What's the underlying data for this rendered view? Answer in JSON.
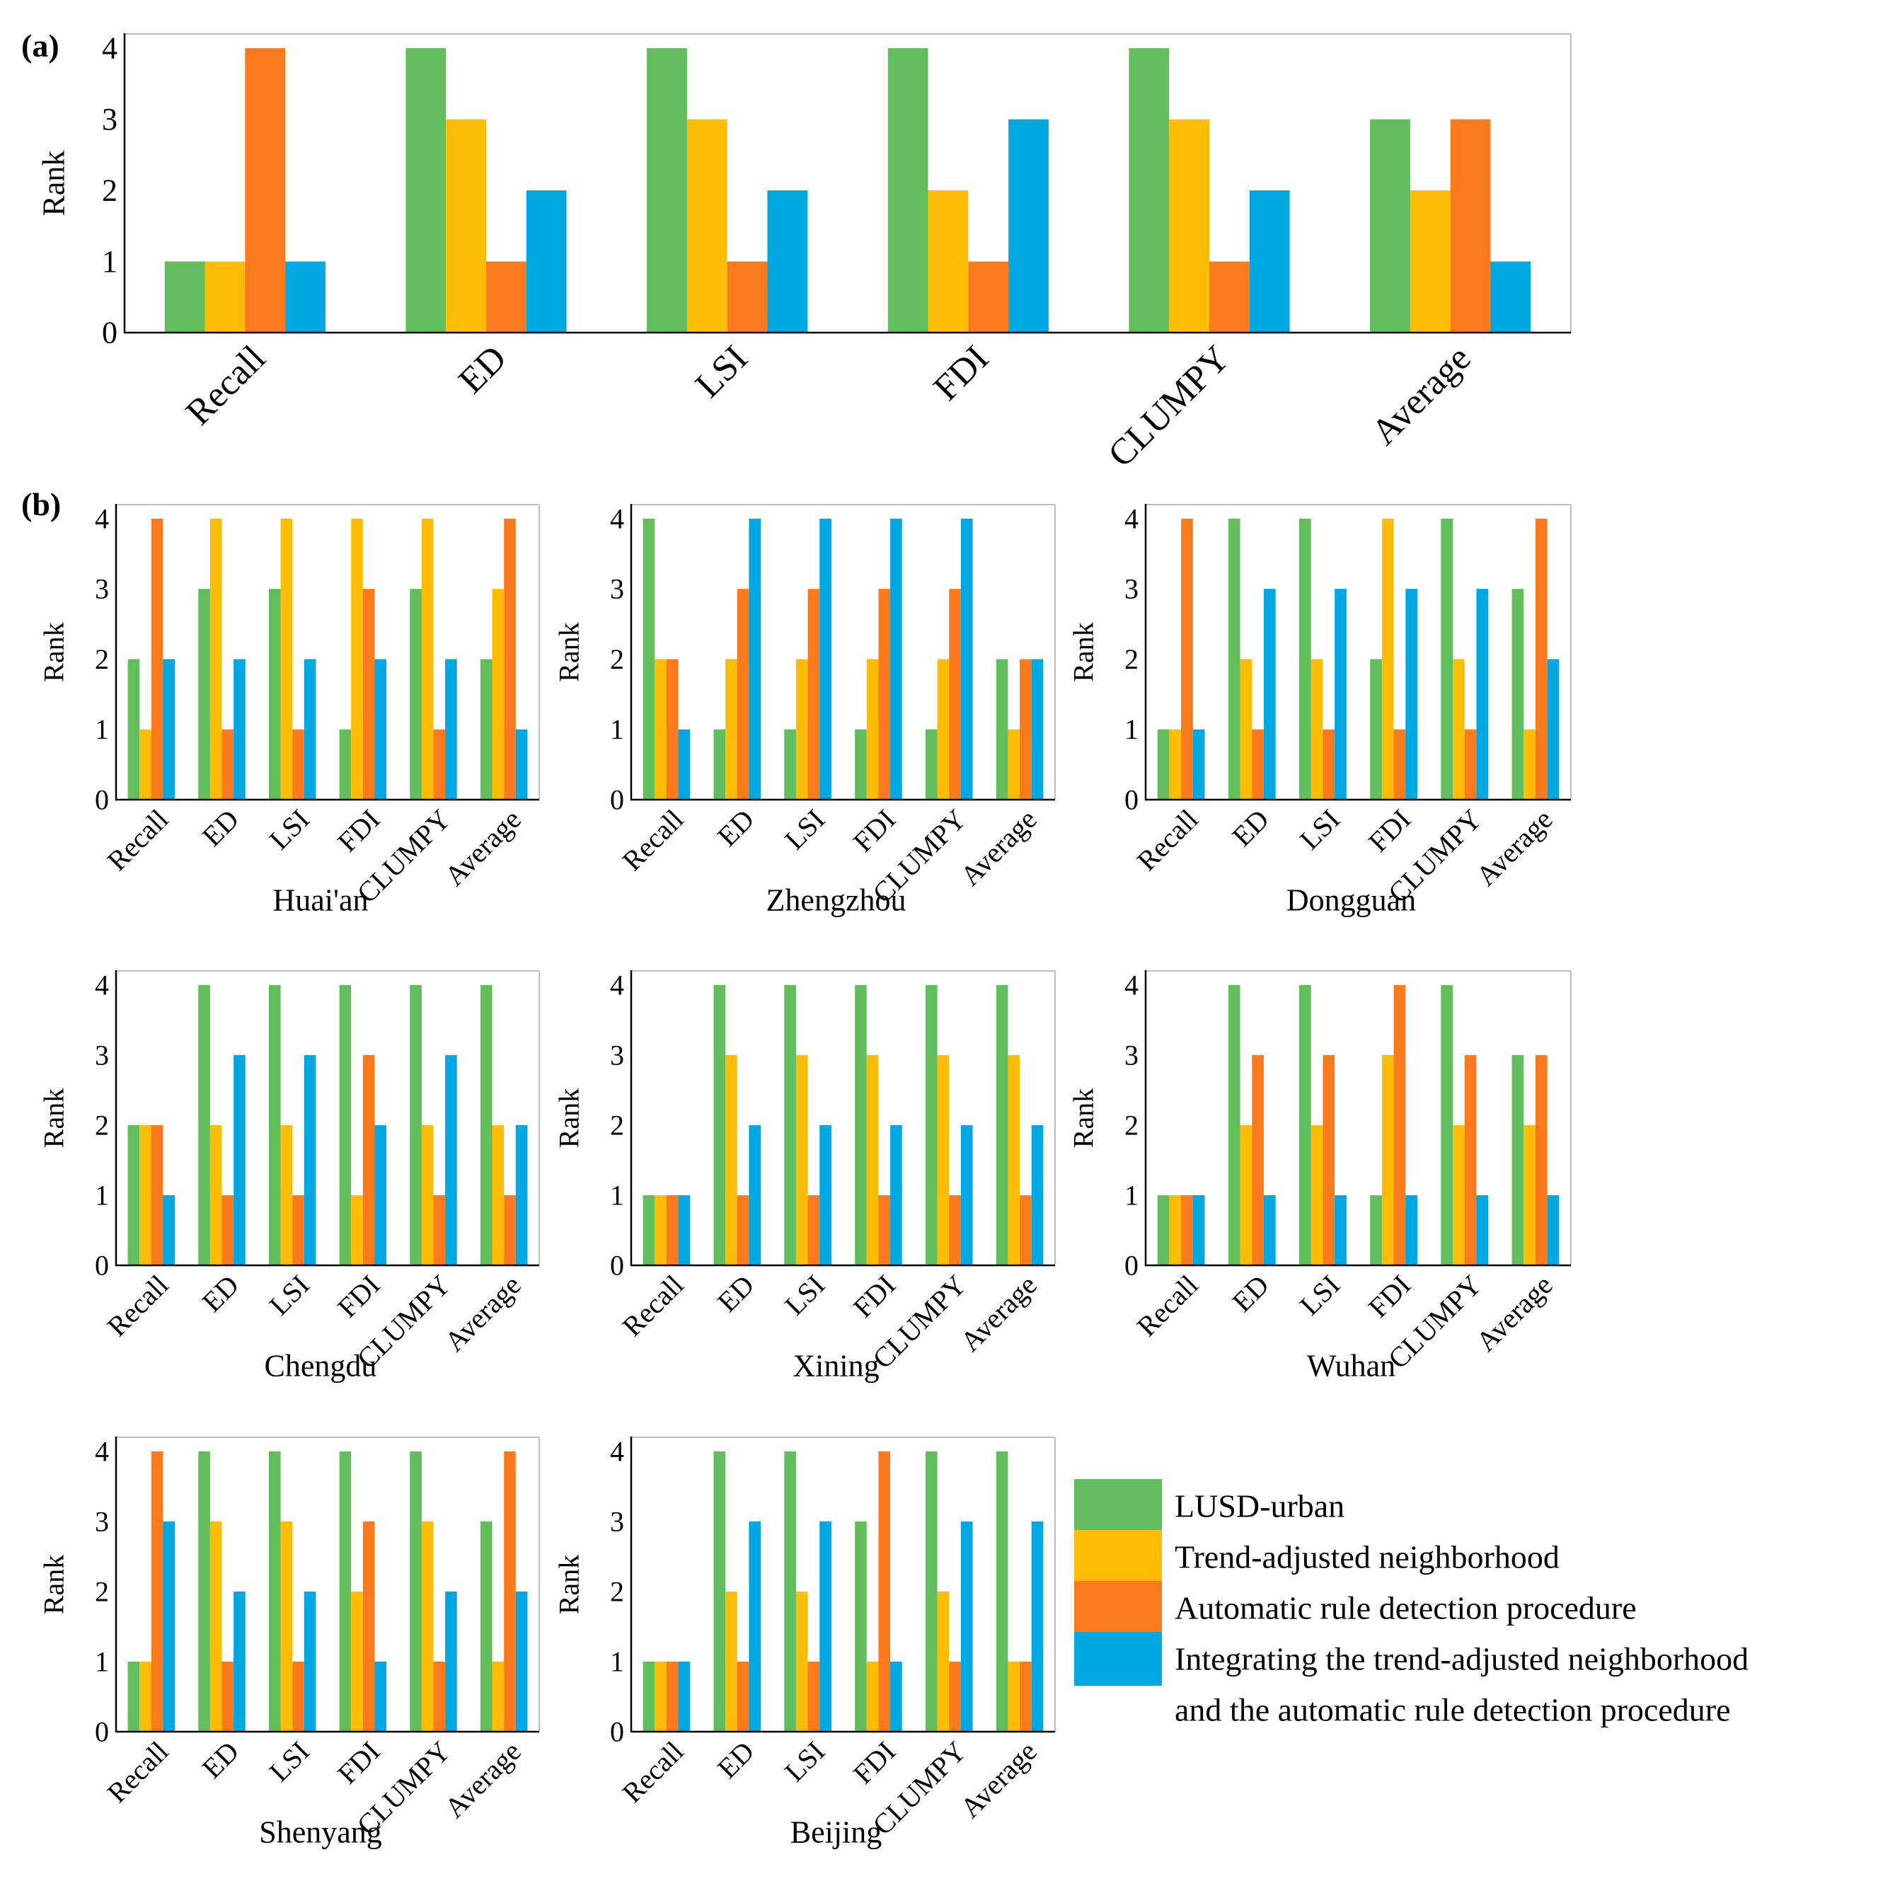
{
  "chart_data": {
    "type": "bar",
    "series_names": [
      "LUSD-urban",
      "Trend-adjusted neighborhood",
      "Automatic rule detection procedure",
      "Integrating the trend-adjusted neighborhood and the automatic rule detection procedure"
    ],
    "colors": [
      "#62BD5C",
      "#FDBD05",
      "#FB7A1D",
      "#00A8E2"
    ],
    "legend": {
      "entries": [
        [
          "LUSD-urban"
        ],
        [
          "Trend-adjusted neighborhood"
        ],
        [
          "Automatic rule detection procedure"
        ],
        [
          "Integrating the trend-adjusted neighborhood",
          "and the automatic rule detection procedure"
        ]
      ],
      "placement": "bottom-right"
    },
    "categories": [
      "Recall",
      "ED",
      "LSI",
      "FDI",
      "CLUMPY",
      "Average"
    ],
    "ylabel": "Rank",
    "yticks": [
      "0",
      "1",
      "2",
      "3",
      "4"
    ],
    "ylim": [
      0,
      4.2
    ],
    "panels": [
      {
        "id": "a",
        "panel_label": "(a)",
        "title": "",
        "series": [
          {
            "name": "LUSD-urban",
            "values": [
              1,
              4,
              4,
              4,
              4,
              3
            ]
          },
          {
            "name": "Trend-adjusted neighborhood",
            "values": [
              1,
              3,
              3,
              2,
              3,
              2
            ]
          },
          {
            "name": "Automatic rule detection procedure",
            "values": [
              4,
              1,
              1,
              1,
              1,
              3
            ]
          },
          {
            "name": "Integrating the trend-adjusted neighborhood and the automatic rule detection procedure",
            "values": [
              1,
              2,
              2,
              3,
              2,
              1
            ]
          }
        ]
      },
      {
        "id": "b1",
        "panel_label": "(b)",
        "title": "Huai'an",
        "series": [
          {
            "name": "LUSD-urban",
            "values": [
              2,
              3,
              3,
              1,
              3,
              2
            ]
          },
          {
            "name": "Trend-adjusted neighborhood",
            "values": [
              1,
              4,
              4,
              4,
              4,
              3
            ]
          },
          {
            "name": "Automatic rule detection procedure",
            "values": [
              4,
              1,
              1,
              3,
              1,
              4
            ]
          },
          {
            "name": "Integrating the trend-adjusted neighborhood and the automatic rule detection procedure",
            "values": [
              2,
              2,
              2,
              2,
              2,
              1
            ]
          }
        ]
      },
      {
        "id": "b2",
        "panel_label": "",
        "title": "Zhengzhou",
        "series": [
          {
            "name": "LUSD-urban",
            "values": [
              4,
              1,
              1,
              1,
              1,
              2
            ]
          },
          {
            "name": "Trend-adjusted neighborhood",
            "values": [
              2,
              2,
              2,
              2,
              2,
              1
            ]
          },
          {
            "name": "Automatic rule detection procedure",
            "values": [
              2,
              3,
              3,
              3,
              3,
              2
            ]
          },
          {
            "name": "Integrating the trend-adjusted neighborhood and the automatic rule detection procedure",
            "values": [
              1,
              4,
              4,
              4,
              4,
              2
            ]
          }
        ]
      },
      {
        "id": "b3",
        "panel_label": "",
        "title": "Dongguan",
        "series": [
          {
            "name": "LUSD-urban",
            "values": [
              1,
              4,
              4,
              2,
              4,
              3
            ]
          },
          {
            "name": "Trend-adjusted neighborhood",
            "values": [
              1,
              2,
              2,
              4,
              2,
              1
            ]
          },
          {
            "name": "Automatic rule detection procedure",
            "values": [
              4,
              1,
              1,
              1,
              1,
              4
            ]
          },
          {
            "name": "Integrating the trend-adjusted neighborhood and the automatic rule detection procedure",
            "values": [
              1,
              3,
              3,
              3,
              3,
              2
            ]
          }
        ]
      },
      {
        "id": "b4",
        "panel_label": "",
        "title": "Chengdu",
        "series": [
          {
            "name": "LUSD-urban",
            "values": [
              2,
              4,
              4,
              4,
              4,
              4
            ]
          },
          {
            "name": "Trend-adjusted neighborhood",
            "values": [
              2,
              2,
              2,
              1,
              2,
              2
            ]
          },
          {
            "name": "Automatic rule detection procedure",
            "values": [
              2,
              1,
              1,
              3,
              1,
              1
            ]
          },
          {
            "name": "Integrating the trend-adjusted neighborhood and the automatic rule detection procedure",
            "values": [
              1,
              3,
              3,
              2,
              3,
              2
            ]
          }
        ]
      },
      {
        "id": "b5",
        "panel_label": "",
        "title": "Xining",
        "series": [
          {
            "name": "LUSD-urban",
            "values": [
              1,
              4,
              4,
              4,
              4,
              4
            ]
          },
          {
            "name": "Trend-adjusted neighborhood",
            "values": [
              1,
              3,
              3,
              3,
              3,
              3
            ]
          },
          {
            "name": "Automatic rule detection procedure",
            "values": [
              1,
              1,
              1,
              1,
              1,
              1
            ]
          },
          {
            "name": "Integrating the trend-adjusted neighborhood and the automatic rule detection procedure",
            "values": [
              1,
              2,
              2,
              2,
              2,
              2
            ]
          }
        ]
      },
      {
        "id": "b6",
        "panel_label": "",
        "title": "Wuhan",
        "series": [
          {
            "name": "LUSD-urban",
            "values": [
              1,
              4,
              4,
              1,
              4,
              3
            ]
          },
          {
            "name": "Trend-adjusted neighborhood",
            "values": [
              1,
              2,
              2,
              3,
              2,
              2
            ]
          },
          {
            "name": "Automatic rule detection procedure",
            "values": [
              1,
              3,
              3,
              4,
              3,
              3
            ]
          },
          {
            "name": "Integrating the trend-adjusted neighborhood and the automatic rule detection procedure",
            "values": [
              1,
              1,
              1,
              1,
              1,
              1
            ]
          }
        ]
      },
      {
        "id": "b7",
        "panel_label": "",
        "title": "Shenyang",
        "series": [
          {
            "name": "LUSD-urban",
            "values": [
              1,
              4,
              4,
              4,
              4,
              3
            ]
          },
          {
            "name": "Trend-adjusted neighborhood",
            "values": [
              1,
              3,
              3,
              2,
              3,
              1
            ]
          },
          {
            "name": "Automatic rule detection procedure",
            "values": [
              4,
              1,
              1,
              3,
              1,
              4
            ]
          },
          {
            "name": "Integrating the trend-adjusted neighborhood and the automatic rule detection procedure",
            "values": [
              3,
              2,
              2,
              1,
              2,
              2
            ]
          }
        ]
      },
      {
        "id": "b8",
        "panel_label": "",
        "title": "Beijing",
        "series": [
          {
            "name": "LUSD-urban",
            "values": [
              1,
              4,
              4,
              3,
              4,
              4
            ]
          },
          {
            "name": "Trend-adjusted neighborhood",
            "values": [
              1,
              2,
              2,
              1,
              2,
              1
            ]
          },
          {
            "name": "Automatic rule detection procedure",
            "values": [
              1,
              1,
              1,
              4,
              1,
              1
            ]
          },
          {
            "name": "Integrating the trend-adjusted neighborhood and the automatic rule detection procedure",
            "values": [
              1,
              3,
              3,
              1,
              3,
              3
            ]
          }
        ]
      }
    ]
  }
}
